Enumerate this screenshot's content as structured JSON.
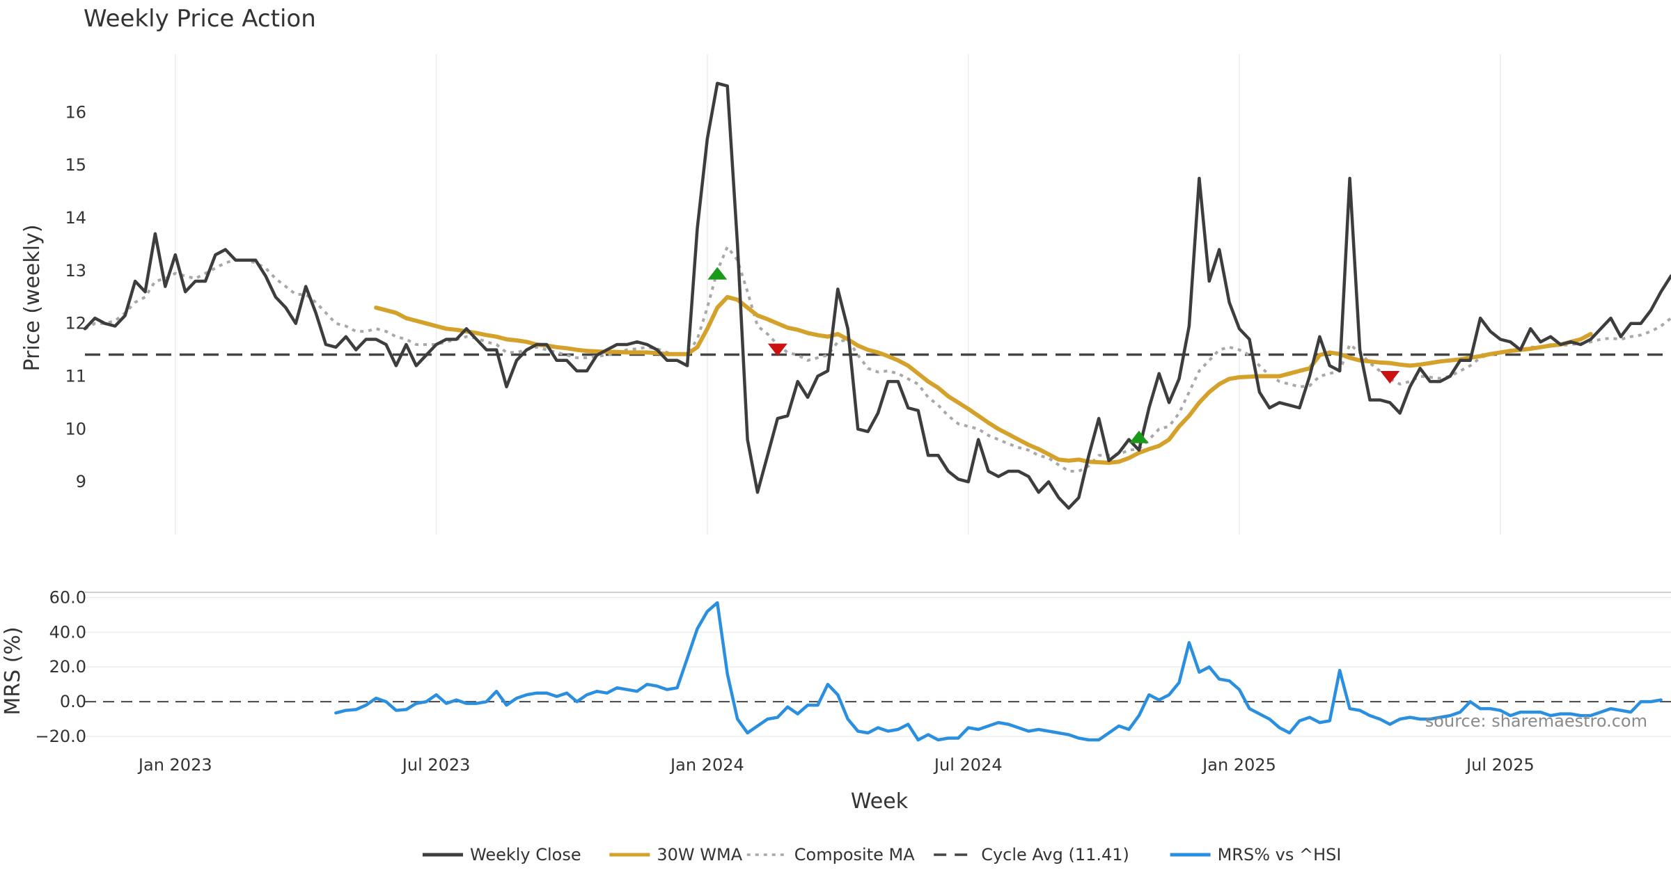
{
  "chart_data": {
    "type": "line",
    "title": "Weekly Price Action",
    "xlabel": "Week",
    "source_note": "source: sharemaestro.com",
    "x_ticks": [
      {
        "label": "Jan 2023",
        "week": 9
      },
      {
        "label": "Jul 2023",
        "week": 35
      },
      {
        "label": "Jan 2024",
        "week": 62
      },
      {
        "label": "Jul 2024",
        "week": 88
      },
      {
        "label": "Jan 2025",
        "week": 115
      },
      {
        "label": "Jul 2025",
        "week": 141
      }
    ],
    "x_range": [
      0,
      158
    ],
    "price_panel": {
      "ylabel": "Price (weekly)",
      "ylim": [
        8.0,
        17.1
      ],
      "y_ticks": [
        9,
        10,
        11,
        12,
        13,
        14,
        15,
        16
      ],
      "cycle_avg_value": 11.41,
      "series": [
        {
          "name": "Weekly Close",
          "color": "#3d3d3d",
          "start_week": 0,
          "values": [
            11.9,
            12.1,
            12.0,
            11.95,
            12.15,
            12.8,
            12.6,
            13.7,
            12.7,
            13.3,
            12.6,
            12.8,
            12.8,
            13.3,
            13.4,
            13.2,
            13.2,
            13.2,
            12.9,
            12.5,
            12.3,
            12.0,
            12.7,
            12.2,
            11.6,
            11.55,
            11.75,
            11.5,
            11.7,
            11.7,
            11.6,
            11.2,
            11.6,
            11.2,
            11.4,
            11.6,
            11.7,
            11.7,
            11.9,
            11.7,
            11.5,
            11.5,
            10.8,
            11.3,
            11.5,
            11.6,
            11.6,
            11.3,
            11.3,
            11.1,
            11.1,
            11.4,
            11.5,
            11.6,
            11.6,
            11.65,
            11.6,
            11.5,
            11.3,
            11.3,
            11.2,
            13.8,
            15.5,
            16.55,
            16.5,
            13.5,
            9.8,
            8.8,
            9.5,
            10.2,
            10.25,
            10.9,
            10.6,
            11.0,
            11.1,
            12.65,
            11.9,
            10.0,
            9.95,
            10.3,
            10.9,
            10.9,
            10.4,
            10.35,
            9.5,
            9.5,
            9.2,
            9.05,
            9.0,
            9.8,
            9.2,
            9.1,
            9.2,
            9.2,
            9.1,
            8.8,
            9.0,
            8.7,
            8.5,
            8.7,
            9.5,
            10.2,
            9.4,
            9.55,
            9.8,
            9.6,
            10.4,
            11.05,
            10.5,
            10.95,
            11.95,
            14.75,
            12.8,
            13.4,
            12.4,
            11.9,
            11.7,
            10.7,
            10.4,
            10.5,
            10.45,
            10.4,
            11.0,
            11.75,
            11.2,
            11.1,
            14.75,
            11.5,
            10.55,
            10.55,
            10.5,
            10.3,
            10.8,
            11.15,
            10.9,
            10.9,
            11.0,
            11.3,
            11.3,
            12.1,
            11.85,
            11.7,
            11.65,
            11.5,
            11.9,
            11.65,
            11.75,
            11.6,
            11.65,
            11.6,
            11.7,
            11.9,
            12.1,
            11.75,
            12.0,
            12.0,
            12.25,
            12.6,
            12.9
          ]
        },
        {
          "name": "30W WMA",
          "color": "#d4a22b",
          "start_week": 29,
          "values": [
            12.3,
            12.25,
            12.2,
            12.1,
            12.05,
            12.0,
            11.95,
            11.9,
            11.88,
            11.85,
            11.82,
            11.78,
            11.75,
            11.7,
            11.68,
            11.65,
            11.6,
            11.58,
            11.55,
            11.53,
            11.5,
            11.48,
            11.47,
            11.46,
            11.46,
            11.45,
            11.45,
            11.45,
            11.44,
            11.42,
            11.42,
            11.42,
            11.55,
            11.9,
            12.3,
            12.5,
            12.45,
            12.3,
            12.15,
            12.08,
            12.0,
            11.92,
            11.88,
            11.82,
            11.78,
            11.75,
            11.8,
            11.7,
            11.58,
            11.5,
            11.45,
            11.38,
            11.3,
            11.2,
            11.05,
            10.9,
            10.78,
            10.62,
            10.5,
            10.38,
            10.25,
            10.12,
            10.0,
            9.9,
            9.8,
            9.7,
            9.62,
            9.52,
            9.42,
            9.4,
            9.42,
            9.38,
            9.37,
            9.36,
            9.38,
            9.45,
            9.55,
            9.62,
            9.68,
            9.8,
            10.05,
            10.25,
            10.5,
            10.7,
            10.85,
            10.95,
            10.98,
            10.99,
            11.0,
            11.0,
            11.0,
            11.05,
            11.1,
            11.15,
            11.4,
            11.45,
            11.42,
            11.35,
            11.3,
            11.28,
            11.26,
            11.25,
            11.22,
            11.2,
            11.22,
            11.25,
            11.28,
            11.3,
            11.32,
            11.35,
            11.38,
            11.42,
            11.45,
            11.48,
            11.5,
            11.52,
            11.55,
            11.58,
            11.6,
            11.65,
            11.7,
            11.8
          ]
        },
        {
          "name": "Composite MA",
          "color": "#a8a8a8",
          "start_week": 0,
          "values": [
            11.9,
            12.0,
            12.0,
            12.05,
            12.2,
            12.4,
            12.5,
            12.8,
            12.85,
            12.95,
            12.9,
            12.85,
            12.95,
            13.05,
            13.15,
            13.2,
            13.2,
            13.15,
            13.05,
            12.85,
            12.7,
            12.55,
            12.55,
            12.4,
            12.2,
            12.0,
            11.95,
            11.85,
            11.85,
            11.9,
            11.85,
            11.75,
            11.7,
            11.6,
            11.6,
            11.6,
            11.65,
            11.7,
            11.75,
            11.72,
            11.65,
            11.6,
            11.45,
            11.45,
            11.5,
            11.55,
            11.5,
            11.45,
            11.4,
            11.35,
            11.35,
            11.38,
            11.4,
            11.45,
            11.5,
            11.52,
            11.55,
            11.52,
            11.45,
            11.42,
            11.42,
            11.7,
            12.3,
            13.0,
            13.45,
            13.2,
            12.6,
            11.95,
            11.8,
            11.6,
            11.45,
            11.4,
            11.3,
            11.35,
            11.4,
            11.65,
            11.7,
            11.4,
            11.15,
            11.08,
            11.1,
            11.05,
            10.95,
            10.85,
            10.6,
            10.45,
            10.25,
            10.1,
            10.05,
            10.0,
            9.88,
            9.8,
            9.72,
            9.65,
            9.6,
            9.5,
            9.45,
            9.32,
            9.2,
            9.2,
            9.3,
            9.5,
            9.5,
            9.52,
            9.6,
            9.62,
            9.8,
            10.0,
            10.05,
            10.3,
            10.7,
            11.1,
            11.3,
            11.5,
            11.55,
            11.5,
            11.4,
            11.2,
            11.02,
            10.9,
            10.85,
            10.8,
            10.82,
            11.0,
            11.05,
            11.1,
            11.6,
            11.45,
            11.25,
            11.1,
            10.95,
            10.85,
            10.9,
            11.0,
            10.98,
            10.96,
            11.0,
            11.1,
            11.2,
            11.35,
            11.42,
            11.45,
            11.48,
            11.5,
            11.55,
            11.55,
            11.6,
            11.58,
            11.6,
            11.62,
            11.65,
            11.7,
            11.72,
            11.7,
            11.75,
            11.78,
            11.85,
            11.95,
            12.1
          ]
        }
      ],
      "signals": [
        {
          "type": "buy",
          "week": 63,
          "value": 12.95,
          "color": "#1a9a1a"
        },
        {
          "type": "sell",
          "week": 69,
          "value": 11.5,
          "color": "#cc1111"
        },
        {
          "type": "buy",
          "week": 105,
          "value": 9.85,
          "color": "#1a9a1a"
        },
        {
          "type": "sell",
          "week": 130,
          "value": 10.98,
          "color": "#cc1111"
        }
      ]
    },
    "mrs_panel": {
      "ylabel": "MRS (%)",
      "ylim": [
        -22,
        63
      ],
      "y_ticks": [
        -20,
        0,
        20,
        40,
        60
      ],
      "y_tick_labels": [
        "−20.0",
        "0.0",
        "20.0",
        "40.0",
        "60.0"
      ],
      "series": {
        "name": "MRS% vs ^HSI",
        "color": "#2b8fe0",
        "start_week": 25,
        "values": [
          -6.5,
          -5,
          -4.5,
          -2,
          2,
          0,
          -5,
          -4.5,
          -1,
          0,
          4,
          -1,
          1,
          -1,
          -1,
          0,
          6,
          -2,
          2,
          4,
          5,
          5,
          3,
          5,
          0,
          4,
          6,
          5,
          8,
          7,
          6,
          10,
          9,
          7,
          8,
          25,
          42,
          52,
          57,
          16,
          -10,
          -18,
          -14,
          -10,
          -9,
          -3,
          -7,
          -2,
          -2,
          10,
          4,
          -10,
          -17,
          -18,
          -15,
          -17,
          -16,
          -13,
          -22,
          -19,
          -22,
          -21,
          -21,
          -15,
          -16,
          -14,
          -12,
          -13,
          -15,
          -17,
          -16,
          -17,
          -18,
          -19,
          -21,
          -22,
          -22,
          -18,
          -14,
          -16,
          -8,
          4,
          1,
          4,
          11,
          34,
          17,
          20,
          13,
          12,
          7,
          -4,
          -7,
          -10,
          -15,
          -18,
          -11,
          -9,
          -12,
          -11,
          18,
          -4,
          -5,
          -8,
          -10,
          -13,
          -10,
          -9,
          -10,
          -10,
          -9,
          -8,
          -6,
          0,
          -4,
          -4,
          -5,
          -8,
          -6,
          -6,
          -6,
          -8,
          -7,
          -7,
          -8,
          -8,
          -6,
          -4,
          -5,
          -6,
          0,
          0,
          1
        ]
      }
    },
    "legend": {
      "position": "bottom-center",
      "items": [
        {
          "label": "Weekly Close",
          "style": "solid",
          "color": "#3d3d3d"
        },
        {
          "label": "30W WMA",
          "style": "solid",
          "color": "#d4a22b"
        },
        {
          "label": "Composite MA",
          "style": "dotted",
          "color": "#a8a8a8"
        },
        {
          "label": "Cycle Avg (11.41)",
          "style": "dashed",
          "color": "#444444"
        },
        {
          "label": "MRS% vs ^HSI",
          "style": "solid",
          "color": "#2b8fe0"
        }
      ]
    }
  }
}
